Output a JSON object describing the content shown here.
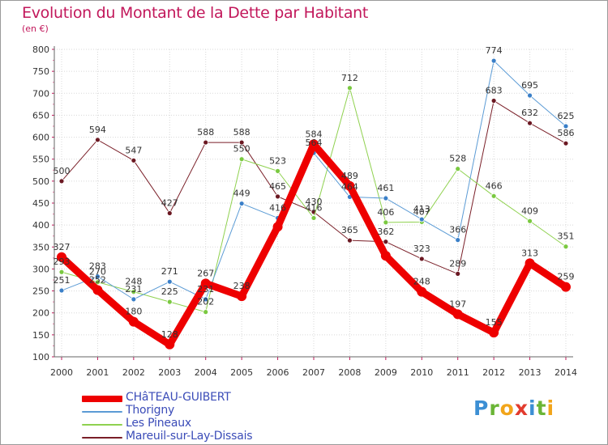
{
  "title": "Evolution du Montant de la Dette par Habitant",
  "unit_label": "(en €)",
  "logo": {
    "text": "Proxiti",
    "letters": [
      {
        "ch": "P",
        "color": "#3c8fd4"
      },
      {
        "ch": "r",
        "color": "#6ab536"
      },
      {
        "ch": "o",
        "color": "#f2a51a"
      },
      {
        "ch": "x",
        "color": "#e23b2e"
      },
      {
        "ch": "i",
        "color": "#3c8fd4"
      },
      {
        "ch": "t",
        "color": "#6ab536"
      },
      {
        "ch": "i",
        "color": "#f2a51a"
      }
    ]
  },
  "chart_data": {
    "type": "line",
    "title": "Evolution du Montant de la Dette par Habitant",
    "ylabel": "(en €)",
    "x": [
      "2000",
      "2001",
      "2002",
      "2003",
      "2004",
      "2005",
      "2006",
      "2007",
      "2008",
      "2009",
      "2010",
      "2011",
      "2012",
      "2013",
      "2014"
    ],
    "ylim": [
      100,
      800
    ],
    "yticks": [
      "100",
      "150",
      "200",
      "250",
      "300",
      "350",
      "400",
      "450",
      "500",
      "550",
      "600",
      "650",
      "700",
      "750",
      "800"
    ],
    "grid": true,
    "legend_position": "bottom-left",
    "series": [
      {
        "name": "CHâTEAU-GUIBERT",
        "color": "#ee0000",
        "width": 9,
        "marker": "#ee0000",
        "values": [
          327,
          252,
          180,
          128,
          267,
          238,
          396,
          584,
          489,
          330,
          248,
          197,
          155,
          313,
          259
        ],
        "labels": [
          "327",
          "252",
          "180",
          "128",
          "267",
          "238",
          "",
          "584",
          "489",
          "",
          "248",
          "197",
          "155",
          "313",
          "259"
        ]
      },
      {
        "name": "Thorigny",
        "color": "#5b9bd5",
        "width": 1,
        "marker": "#3a7fc8",
        "values": [
          251,
          283,
          231,
          271,
          231,
          449,
          416,
          564,
          464,
          461,
          413,
          366,
          774,
          695,
          625
        ],
        "labels": [
          "251",
          "283",
          "231",
          "271",
          "231",
          "449",
          "416",
          "564",
          "464",
          "461",
          "413",
          "366",
          "774",
          "695",
          "625"
        ]
      },
      {
        "name": "Les Pineaux",
        "color": "#8fd14f",
        "width": 1,
        "marker": "#7ac940",
        "values": [
          293,
          270,
          248,
          225,
          202,
          550,
          523,
          416,
          712,
          406,
          407,
          528,
          466,
          409,
          351
        ],
        "labels": [
          "293",
          "270",
          "248",
          "225",
          "202",
          "550",
          "523",
          "416",
          "712",
          "406",
          "407",
          "528",
          "466",
          "409",
          "351"
        ]
      },
      {
        "name": "Mareuil-sur-Lay-Dissais",
        "color": "#7a1f28",
        "width": 1,
        "marker": "#6b1822",
        "values": [
          500,
          594,
          547,
          427,
          588,
          588,
          465,
          430,
          365,
          362,
          323,
          289,
          683,
          632,
          586
        ],
        "labels": [
          "500",
          "594",
          "547",
          "427",
          "588",
          "588",
          "465",
          "430",
          "365",
          "362",
          "323",
          "289",
          "683",
          "632",
          "586"
        ]
      }
    ]
  }
}
